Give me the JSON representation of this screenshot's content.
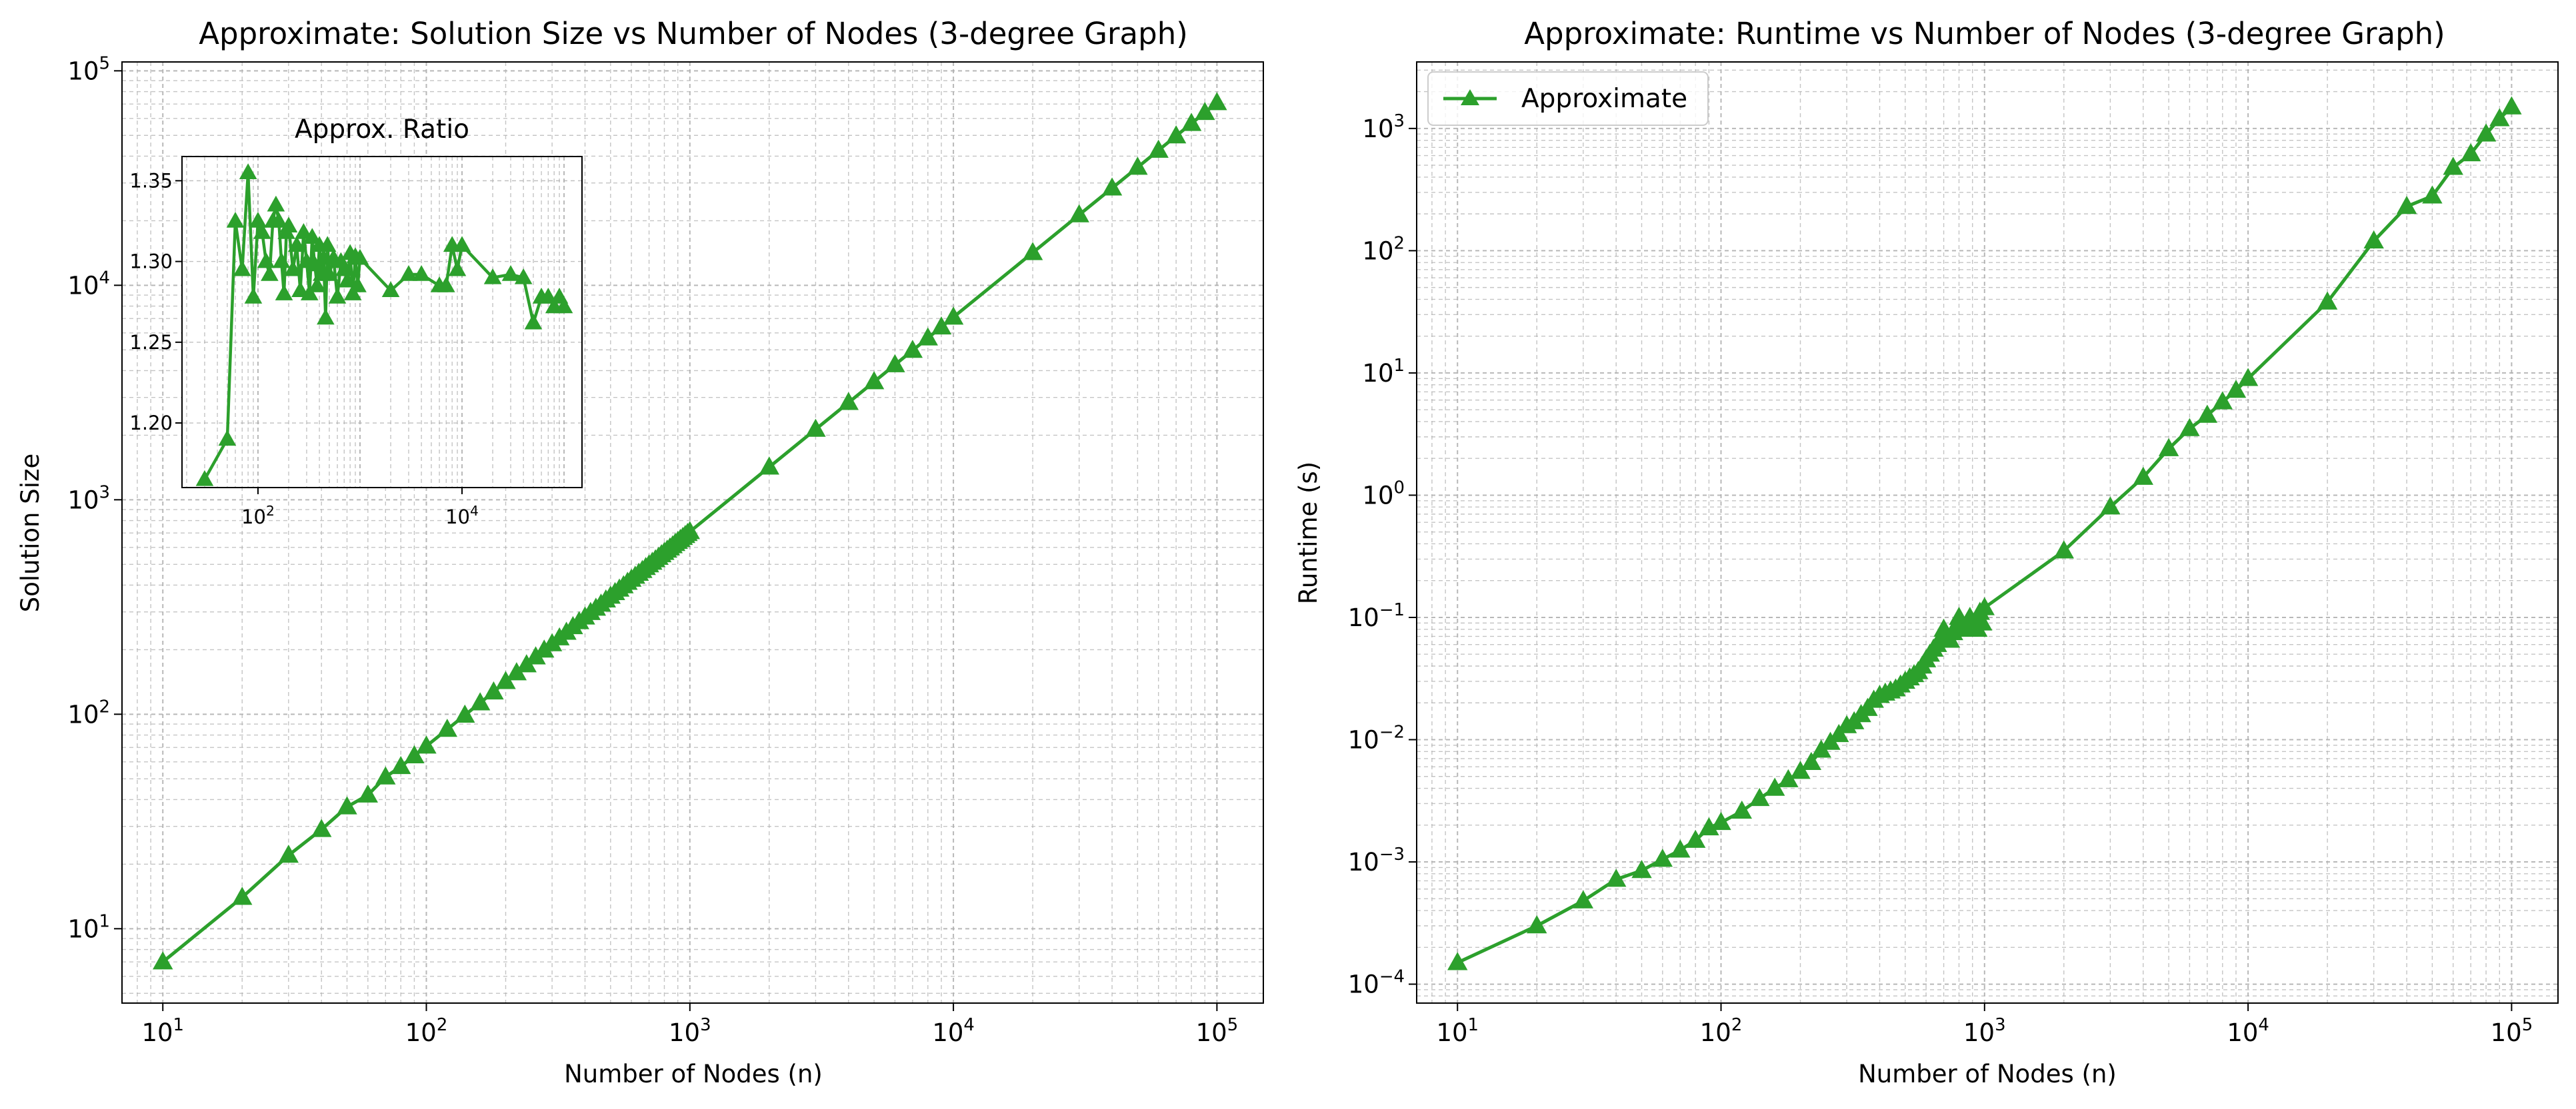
{
  "colors": {
    "series": "#2ca02c",
    "grid": "#b0b0b0",
    "axis": "#000000"
  },
  "chart_data": [
    {
      "type": "line",
      "title": "Approximate: Solution Size vs Number of Nodes (3-degree Graph)",
      "xlabel": "Number of Nodes (n)",
      "ylabel": "Solution Size",
      "xscale": "log",
      "yscale": "log",
      "xlim": [
        7,
        150000
      ],
      "ylim": [
        4.5,
        110000
      ],
      "grid": true,
      "marker": "triangle",
      "xticks": [
        {
          "base": "10",
          "exp": "1"
        },
        {
          "base": "10",
          "exp": "2"
        },
        {
          "base": "10",
          "exp": "3"
        },
        {
          "base": "10",
          "exp": "4"
        },
        {
          "base": "10",
          "exp": "5"
        }
      ],
      "yticks": [
        {
          "base": "10",
          "exp": "1"
        },
        {
          "base": "10",
          "exp": "2"
        },
        {
          "base": "10",
          "exp": "3"
        },
        {
          "base": "10",
          "exp": "4"
        },
        {
          "base": "10",
          "exp": "5"
        }
      ],
      "series": [
        {
          "x": [
            10,
            20,
            30,
            40,
            50,
            60,
            70,
            80,
            90,
            100,
            120,
            140,
            160,
            180,
            200,
            220,
            240,
            260,
            280,
            300,
            320,
            340,
            360,
            380,
            400,
            420,
            440,
            460,
            480,
            500,
            520,
            540,
            560,
            580,
            600,
            620,
            640,
            660,
            680,
            700,
            720,
            740,
            760,
            780,
            800,
            820,
            840,
            860,
            880,
            900,
            920,
            940,
            960,
            980,
            1000,
            2000,
            3000,
            4000,
            5000,
            6000,
            7000,
            8000,
            9000,
            10000,
            20000,
            30000,
            40000,
            50000,
            60000,
            70000,
            80000,
            90000,
            100000
          ],
          "y": [
            7,
            14,
            22,
            29,
            37,
            42,
            51,
            57,
            64,
            71,
            85,
            99,
            113,
            127,
            142,
            156,
            170,
            185,
            199,
            213,
            227,
            241,
            256,
            270,
            284,
            298,
            312,
            326,
            341,
            355,
            369,
            383,
            397,
            412,
            426,
            440,
            454,
            468,
            483,
            497,
            511,
            525,
            539,
            554,
            568,
            582,
            596,
            610,
            625,
            639,
            653,
            667,
            681,
            696,
            710,
            1420,
            2130,
            2840,
            3550,
            4260,
            4970,
            5680,
            6390,
            7100,
            14200,
            21300,
            28400,
            35500,
            42600,
            49700,
            56800,
            63900,
            71000
          ]
        }
      ]
    },
    {
      "type": "line",
      "title": "Approx. Ratio",
      "xscale": "log",
      "xlim": [
        18,
        150000
      ],
      "ylim": [
        1.16,
        1.365
      ],
      "grid": true,
      "marker": "triangle",
      "xticks": [
        {
          "base": "10",
          "exp": "2"
        },
        {
          "base": "10",
          "exp": "4"
        }
      ],
      "yticks": [
        "1.20",
        "1.25",
        "1.30",
        "1.35"
      ],
      "series": [
        {
          "x": [
            30,
            50,
            60,
            70,
            80,
            90,
            100,
            110,
            120,
            130,
            140,
            150,
            160,
            170,
            180,
            190,
            200,
            220,
            240,
            260,
            280,
            300,
            320,
            340,
            360,
            380,
            400,
            420,
            440,
            460,
            480,
            500,
            550,
            600,
            650,
            700,
            750,
            800,
            850,
            900,
            950,
            1000,
            2000,
            3000,
            4000,
            6000,
            7000,
            8000,
            9000,
            10000,
            20000,
            30000,
            40000,
            50000,
            60000,
            70000,
            80000,
            90000,
            100000
          ],
          "y": [
            1.165,
            1.19,
            1.325,
            1.295,
            1.355,
            1.278,
            1.325,
            1.318,
            1.3,
            1.292,
            1.325,
            1.335,
            1.325,
            1.3,
            1.28,
            1.318,
            1.322,
            1.295,
            1.31,
            1.282,
            1.318,
            1.3,
            1.28,
            1.315,
            1.298,
            1.285,
            1.31,
            1.292,
            1.302,
            1.265,
            1.31,
            1.292,
            1.302,
            1.278,
            1.3,
            1.295,
            1.288,
            1.305,
            1.28,
            1.303,
            1.285,
            1.302,
            1.282,
            1.292,
            1.292,
            1.285,
            1.285,
            1.31,
            1.295,
            1.31,
            1.29,
            1.292,
            1.29,
            1.262,
            1.278,
            1.278,
            1.272,
            1.278,
            1.272
          ]
        }
      ]
    },
    {
      "type": "line",
      "title": "Approximate: Runtime vs Number of Nodes (3-degree Graph)",
      "xlabel": "Number of Nodes (n)",
      "ylabel": "Runtime (s)",
      "xscale": "log",
      "yscale": "log",
      "xlim": [
        7,
        150000
      ],
      "ylim": [
        7e-05,
        3500
      ],
      "grid": true,
      "legend": "top-left",
      "marker": "triangle",
      "xticks": [
        {
          "base": "10",
          "exp": "1"
        },
        {
          "base": "10",
          "exp": "2"
        },
        {
          "base": "10",
          "exp": "3"
        },
        {
          "base": "10",
          "exp": "4"
        },
        {
          "base": "10",
          "exp": "5"
        }
      ],
      "yticks": [
        {
          "base": "10",
          "exp": "−4"
        },
        {
          "base": "10",
          "exp": "−3"
        },
        {
          "base": "10",
          "exp": "−2"
        },
        {
          "base": "10",
          "exp": "−1"
        },
        {
          "base": "10",
          "exp": "0"
        },
        {
          "base": "10",
          "exp": "1"
        },
        {
          "base": "10",
          "exp": "2"
        },
        {
          "base": "10",
          "exp": "3"
        }
      ],
      "series": [
        {
          "name": "Approximate",
          "x": [
            10,
            20,
            30,
            40,
            50,
            60,
            70,
            80,
            90,
            100,
            120,
            140,
            160,
            180,
            200,
            220,
            240,
            260,
            280,
            300,
            320,
            340,
            360,
            380,
            400,
            420,
            440,
            460,
            480,
            500,
            520,
            540,
            560,
            580,
            600,
            620,
            640,
            660,
            680,
            700,
            720,
            740,
            760,
            780,
            800,
            820,
            840,
            860,
            880,
            900,
            920,
            940,
            960,
            980,
            1000,
            2000,
            3000,
            4000,
            5000,
            6000,
            7000,
            8000,
            9000,
            10000,
            20000,
            30000,
            40000,
            50000,
            60000,
            70000,
            80000,
            90000,
            100000
          ],
          "y": [
            0.00015,
            0.0003,
            0.00048,
            0.00072,
            0.00085,
            0.00105,
            0.00125,
            0.0015,
            0.0019,
            0.0021,
            0.0026,
            0.0033,
            0.004,
            0.0047,
            0.0055,
            0.0065,
            0.0082,
            0.0095,
            0.011,
            0.013,
            0.014,
            0.016,
            0.018,
            0.021,
            0.023,
            0.024,
            0.025,
            0.026,
            0.028,
            0.03,
            0.032,
            0.034,
            0.036,
            0.04,
            0.045,
            0.05,
            0.055,
            0.06,
            0.065,
            0.08,
            0.07,
            0.065,
            0.075,
            0.085,
            0.1,
            0.09,
            0.08,
            0.085,
            0.1,
            0.09,
            0.085,
            0.08,
            0.11,
            0.09,
            0.12,
            0.35,
            0.8,
            1.4,
            2.4,
            3.5,
            4.5,
            5.8,
            7.2,
            9,
            38,
            120,
            230,
            280,
            480,
            620,
            900,
            1200,
            1500
          ]
        }
      ]
    }
  ]
}
